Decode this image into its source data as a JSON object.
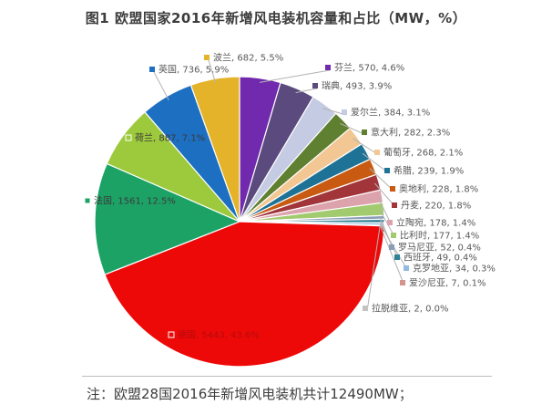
{
  "title": "图1  欧盟国家2016年新增风电装机容量和占比（MW，%）",
  "note": "注：欧盟28国2016年新增风电装机共计12490MW；",
  "chart_data": {
    "type": "pie",
    "title": "图1  欧盟国家2016年新增风电装机容量和占比（MW，%）",
    "unit": "MW",
    "total_mw": 12490,
    "label_format": "name, value, percent",
    "start_angle_deg": 0,
    "direction": "clockwise",
    "slices": [
      {
        "name": "芬兰",
        "value": 570,
        "pct": "4.6%",
        "color": "#7129ae"
      },
      {
        "name": "瑞典",
        "value": 493,
        "pct": "3.9%",
        "color": "#5b4a7d"
      },
      {
        "name": "爱尔兰",
        "value": 384,
        "pct": "3.1%",
        "color": "#c4cbe2"
      },
      {
        "name": "意大利",
        "value": 282,
        "pct": "2.3%",
        "color": "#5f7f31"
      },
      {
        "name": "葡萄牙",
        "value": 268,
        "pct": "2.1%",
        "color": "#f2c794"
      },
      {
        "name": "希腊",
        "value": 239,
        "pct": "1.9%",
        "color": "#1e7295"
      },
      {
        "name": "奥地利",
        "value": 228,
        "pct": "1.8%",
        "color": "#c85a12"
      },
      {
        "name": "丹麦",
        "value": 220,
        "pct": "1.8%",
        "color": "#a1353a"
      },
      {
        "name": "立陶宛",
        "value": 178,
        "pct": "1.4%",
        "color": "#dda3ac"
      },
      {
        "name": "比利时",
        "value": 177,
        "pct": "1.4%",
        "color": "#a2cb70"
      },
      {
        "name": "罗马尼亚",
        "value": 52,
        "pct": "0.4%",
        "color": "#8b9cb8"
      },
      {
        "name": "西班牙",
        "value": 49,
        "pct": "0.4%",
        "color": "#2d8296"
      },
      {
        "name": "克罗地亚",
        "value": 34,
        "pct": "0.3%",
        "color": "#93bbe2"
      },
      {
        "name": "爱沙尼亚",
        "value": 7,
        "pct": "0.1%",
        "color": "#d59390"
      },
      {
        "name": "拉脱维亚",
        "value": 2,
        "pct": "0.0%",
        "color": "#c2c2c2"
      },
      {
        "name": "德国",
        "value": 5443,
        "pct": "43.6%",
        "color": "#ee0909"
      },
      {
        "name": "法国",
        "value": 1561,
        "pct": "12.5%",
        "color": "#1da266"
      },
      {
        "name": "荷兰",
        "value": 887,
        "pct": "7.1%",
        "color": "#9dc93d"
      },
      {
        "name": "英国",
        "value": 736,
        "pct": "5.9%",
        "color": "#1d6fc2"
      },
      {
        "name": "波兰",
        "value": 682,
        "pct": "5.5%",
        "color": "#e5b329"
      }
    ]
  }
}
